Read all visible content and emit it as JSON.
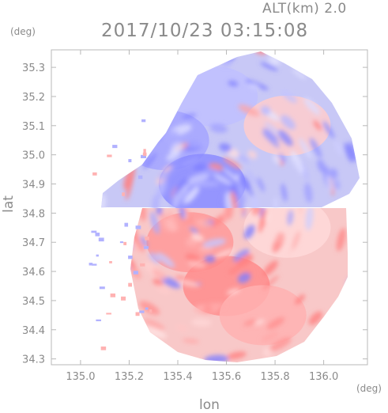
{
  "header": {
    "alt_label": "ALT(km)  2.0",
    "timestamp": "2017/10/23 03:15:08",
    "y_unit": "(deg)",
    "x_unit": "(deg)"
  },
  "chart_data": {
    "type": "heatmap",
    "title": "2017/10/23 03:15:08",
    "subtitle": "ALT(km)  2.0",
    "xlabel": "lon",
    "ylabel": "lat",
    "x_unit": "(deg)",
    "y_unit": "(deg)",
    "xlim": [
      134.88,
      136.18
    ],
    "ylim": [
      34.28,
      35.36
    ],
    "x_ticks": [
      135.0,
      135.2,
      135.4,
      135.6,
      135.8,
      136.0
    ],
    "x_tick_labels": [
      "135.0",
      "135.2",
      "135.4",
      "135.6",
      "135.8",
      "136.0"
    ],
    "y_ticks": [
      34.3,
      34.4,
      34.5,
      34.6,
      34.7,
      34.8,
      34.9,
      35.0,
      35.1,
      35.2,
      35.3
    ],
    "y_tick_labels": [
      "34.3",
      "34.4",
      "34.5",
      "34.6",
      "34.7",
      "34.8",
      "34.9",
      "35.0",
      "35.1",
      "35.2",
      "35.3"
    ],
    "grid": false,
    "radar_center": [
      135.52,
      34.82
    ],
    "colors": {
      "away": "#ff7f7f",
      "toward": "#7f7fff",
      "neutral": "#ffffff"
    },
    "regions": [
      {
        "lat": 35.2,
        "lon": 135.55,
        "value": -0.5
      },
      {
        "lat": 35.05,
        "lon": 135.35,
        "value": -0.7
      },
      {
        "lat": 34.9,
        "lon": 135.5,
        "value": -0.9
      },
      {
        "lat": 35.1,
        "lon": 135.85,
        "value": 0.4
      },
      {
        "lat": 34.7,
        "lon": 135.45,
        "value": 0.8
      },
      {
        "lat": 34.55,
        "lon": 135.6,
        "value": 0.9
      },
      {
        "lat": 34.45,
        "lon": 135.75,
        "value": 0.6
      },
      {
        "lat": 34.75,
        "lon": 135.85,
        "value": 0.3
      }
    ]
  }
}
